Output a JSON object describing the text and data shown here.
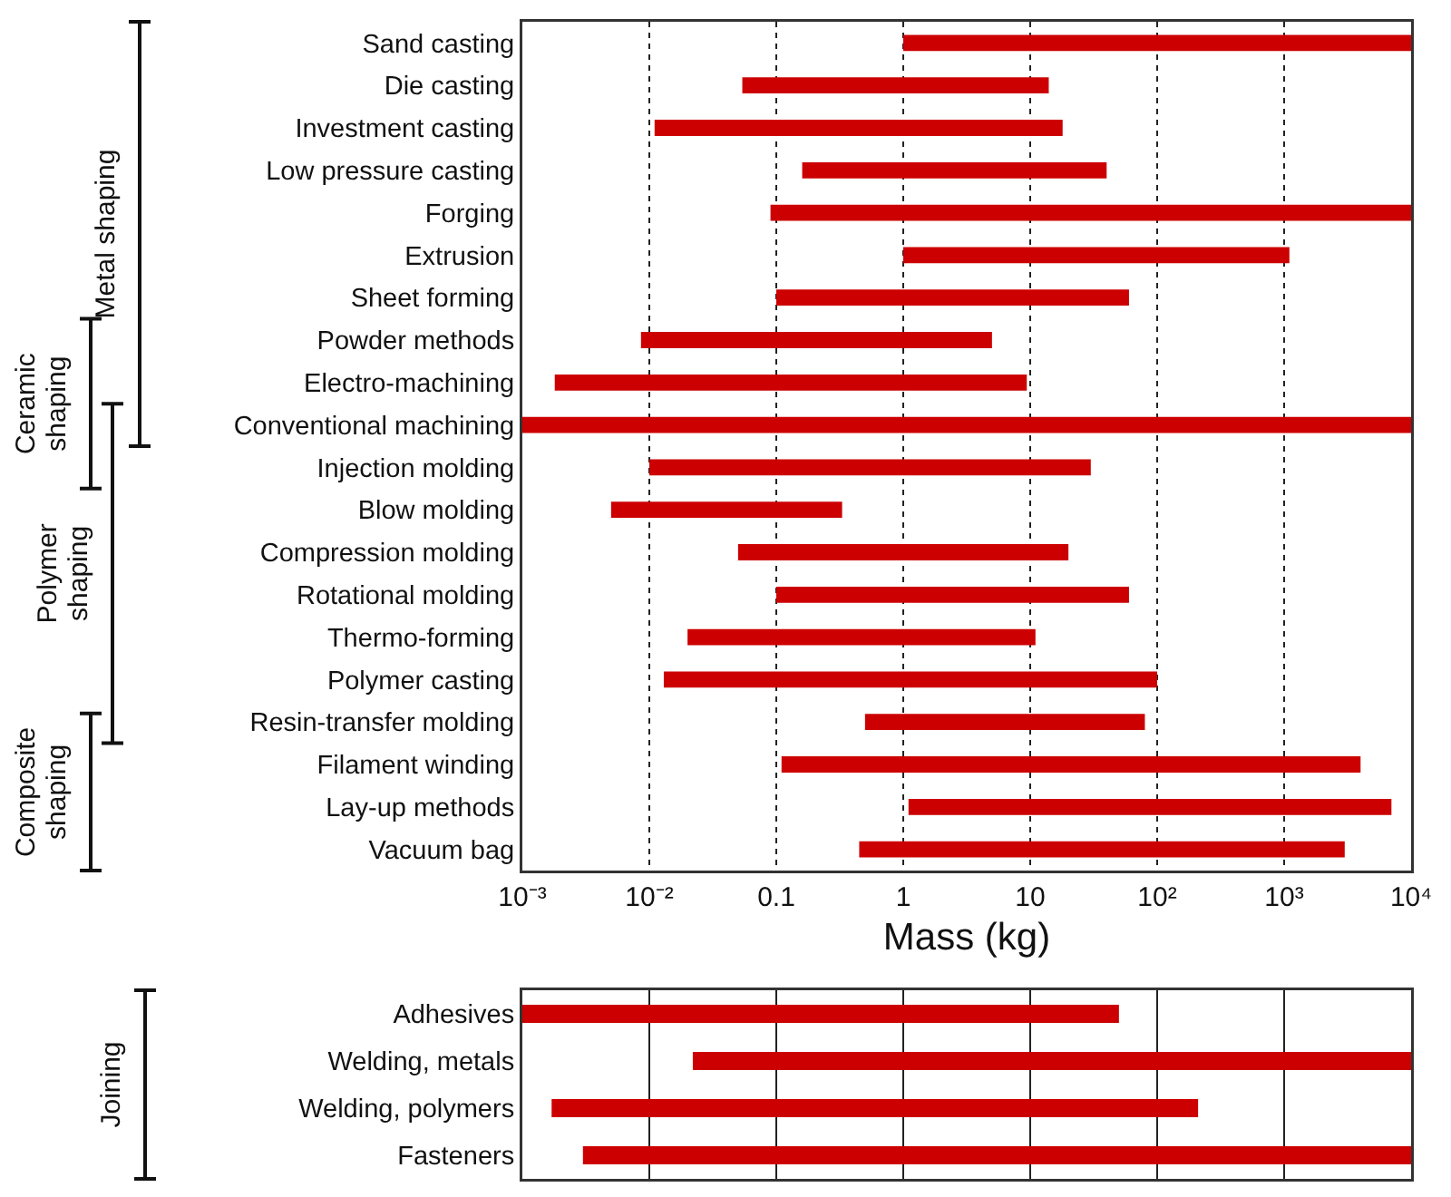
{
  "chart_data": [
    {
      "type": "bar",
      "orientation": "horizontal",
      "log": "x",
      "grid": "x",
      "xlabel": "Mass (kg)",
      "xlim": [
        0.001,
        10000
      ],
      "xticks": [
        {
          "value": 0.001,
          "label": "10⁻³"
        },
        {
          "value": 0.01,
          "label": "10⁻²"
        },
        0.1,
        1,
        10,
        {
          "value": 100,
          "label": "10²"
        },
        {
          "value": 1000,
          "label": "10³"
        },
        {
          "value": 10000,
          "label": "10⁴"
        }
      ],
      "categories": [
        "Sand casting",
        "Die casting",
        "Investment casting",
        "Low pressure casting",
        "Forging",
        "Extrusion",
        "Sheet forming",
        "Powder methods",
        "Electro-machining",
        "Conventional machining",
        "Injection molding",
        "Blow molding",
        "Compression molding",
        "Rotational molding",
        "Thermo-forming",
        "Polymer casting",
        "Resin-transfer molding",
        "Filament winding",
        "Lay-up methods",
        "Vacuum bag"
      ],
      "base": [
        1,
        0.054,
        0.011,
        0.16,
        0.09,
        1,
        0.1,
        0.0086,
        0.0018,
        0.001,
        0.01,
        0.005,
        0.05,
        0.1,
        0.02,
        0.013,
        0.5,
        0.11,
        1.1,
        0.45
      ],
      "values": [
        9999,
        13.946,
        17.989,
        39.84,
        9999.91,
        1099,
        59.9,
        4.9914,
        9.3982,
        9999.999,
        29.99,
        0.325,
        19.95,
        59.9,
        10.98,
        99.987,
        79.5,
        3999.89,
        6998.9,
        2999.55
      ],
      "color": "#cc0000",
      "annotations": [
        "Metal shaping",
        "Ceramic\nshaping",
        "Polymer\nshaping",
        "Composite\nshaping"
      ]
    },
    {
      "type": "bar",
      "orientation": "horizontal",
      "log": "x",
      "grid": "x",
      "tick_labels": "y",
      "xlim": [
        0.001,
        10000
      ],
      "xticks": [
        0.001,
        0.01,
        0.1,
        1,
        10,
        100,
        1000,
        10000
      ],
      "categories": [
        "Adhesives",
        "Welding, metals",
        "Welding, polymers",
        "Fasteners"
      ],
      "base": [
        0.001,
        0.022,
        0.0017,
        0.003
      ],
      "values": [
        49.999,
        9999.978,
        209.9983,
        9999.997
      ],
      "color": "#cc0000",
      "annotations": [
        "Joining"
      ]
    }
  ]
}
